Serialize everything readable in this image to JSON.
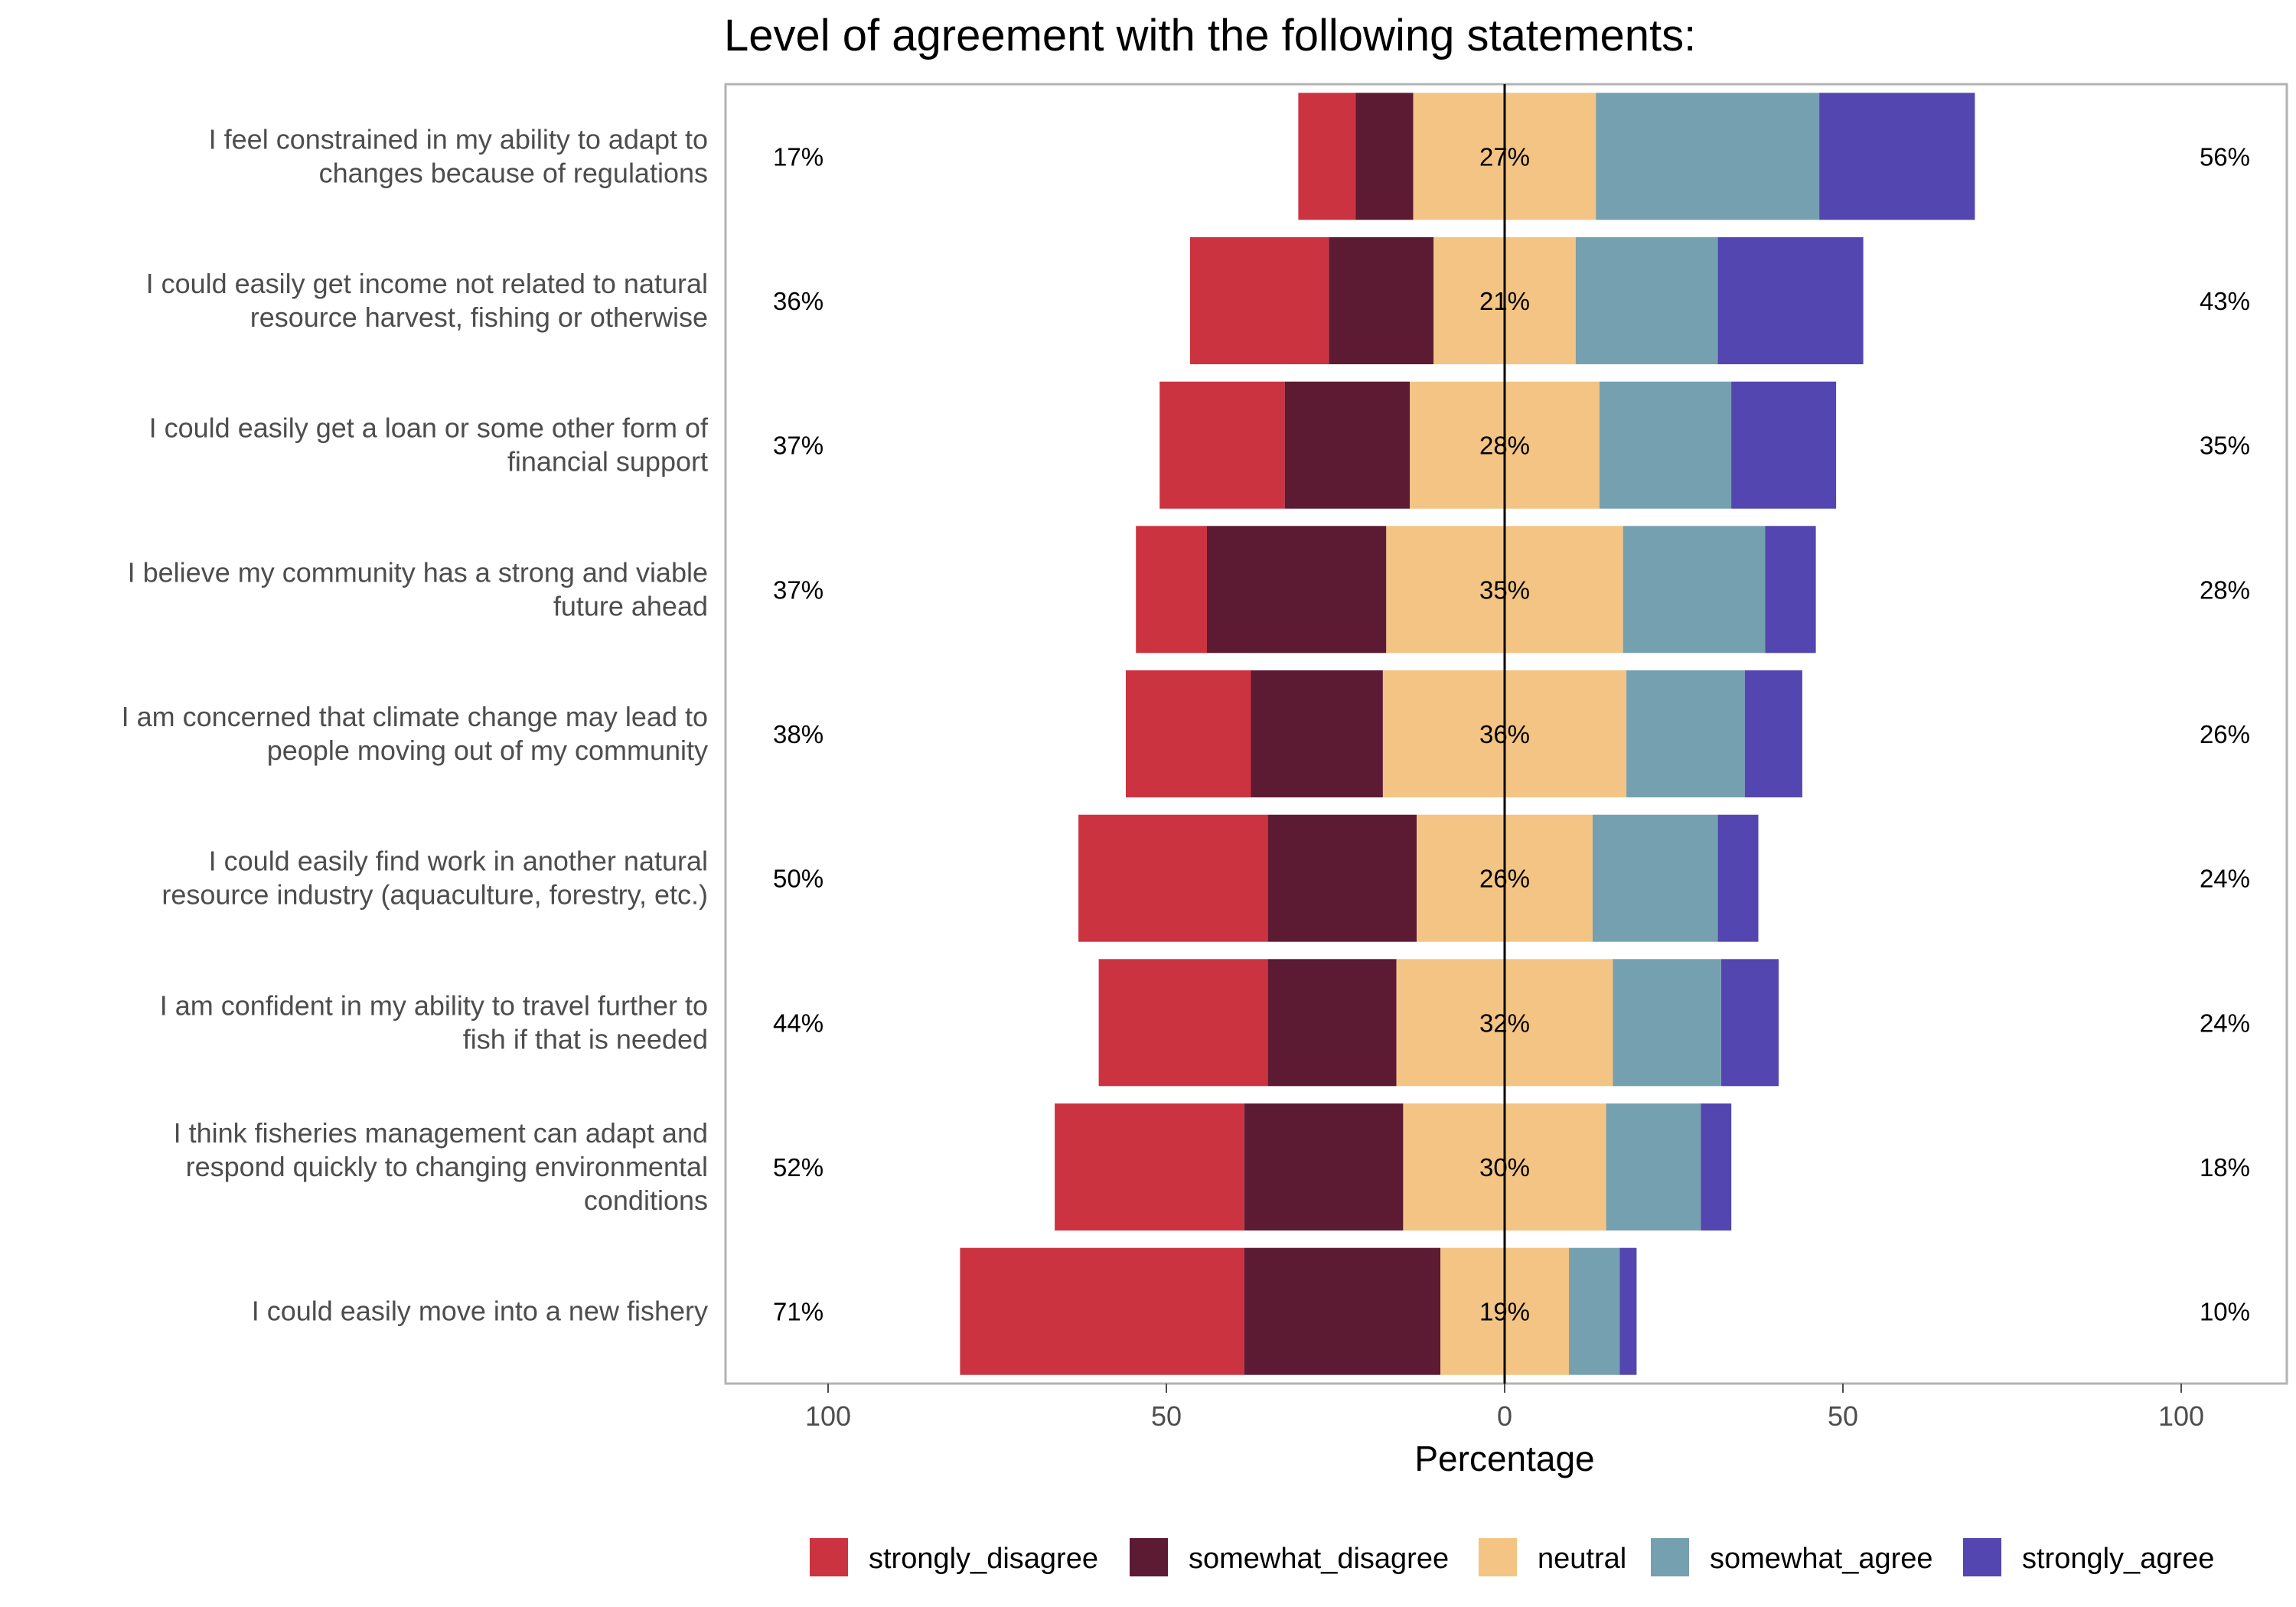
{
  "chart_data": {
    "type": "bar",
    "orientation": "horizontal",
    "stacking": "diverging",
    "title": "Level of agreement with the following statements:",
    "xlabel": "Percentage",
    "ylabel": "",
    "xlim": [
      -100,
      100
    ],
    "x_ticks": [
      -100,
      -50,
      0,
      50,
      100
    ],
    "x_tick_labels": [
      "100",
      "50",
      "0",
      "50",
      "100"
    ],
    "grid": false,
    "legend_position": "bottom",
    "categories": [
      "I feel constrained in my ability to adapt to\nchanges because of regulations",
      "I could easily get income not related to natural\nresource harvest, fishing or otherwise",
      "I could easily get a loan or some other form of\nfinancial support",
      "I believe my community has a strong and viable\nfuture ahead",
      "I am concerned that climate change may lead to\npeople moving out of my community",
      "I could easily find work in another natural\nresource industry (aquaculture, forestry, etc.)",
      "I am confident in my ability to travel further to\nfish if that is needed",
      "I think fisheries management can adapt and\nrespond quickly to changing environmental\nconditions",
      "I could easily move into a new fishery"
    ],
    "series": [
      {
        "name": "strongly_disagree",
        "color": "#cc3340",
        "values": [
          8.5,
          20.5,
          18.5,
          10.5,
          18.5,
          28,
          25,
          28,
          42
        ]
      },
      {
        "name": "somewhat_disagree",
        "color": "#5c1a33",
        "values": [
          8.5,
          15.5,
          18.5,
          26.5,
          19.5,
          22,
          19,
          23.5,
          29
        ]
      },
      {
        "name": "neutral",
        "color": "#f3c483",
        "values": [
          27,
          21,
          28,
          35,
          36,
          26,
          32,
          30,
          19
        ]
      },
      {
        "name": "somewhat_agree",
        "color": "#75a0b0",
        "values": [
          33,
          21,
          19.5,
          21,
          17.5,
          18.5,
          16,
          14,
          7.5
        ]
      },
      {
        "name": "strongly_agree",
        "color": "#5446b0",
        "values": [
          23,
          21.5,
          15.5,
          7.5,
          8.5,
          6,
          8.5,
          4.5,
          2.5
        ]
      }
    ],
    "left_labels": [
      "17%",
      "36%",
      "37%",
      "37%",
      "38%",
      "50%",
      "44%",
      "52%",
      "71%"
    ],
    "center_labels": [
      "27%",
      "21%",
      "28%",
      "35%",
      "36%",
      "26%",
      "32%",
      "30%",
      "19%"
    ],
    "right_labels": [
      "56%",
      "43%",
      "35%",
      "28%",
      "26%",
      "24%",
      "24%",
      "18%",
      "10%"
    ]
  }
}
